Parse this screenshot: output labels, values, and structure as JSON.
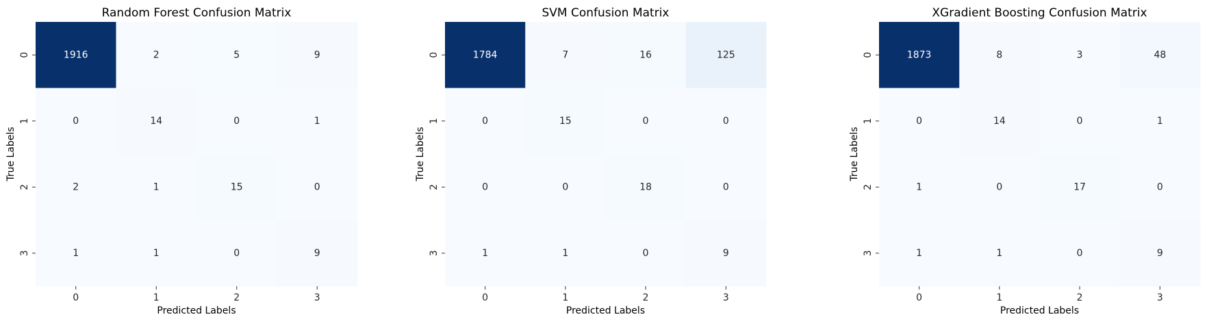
{
  "chart_data": [
    {
      "type": "heatmap",
      "title": "Random Forest Confusion Matrix",
      "xlabel": "Predicted Labels",
      "ylabel": "True Labels",
      "x_categories": [
        "0",
        "1",
        "2",
        "3"
      ],
      "y_categories": [
        "0",
        "1",
        "2",
        "3"
      ],
      "values": [
        [
          1916,
          2,
          5,
          9
        ],
        [
          0,
          14,
          0,
          1
        ],
        [
          2,
          1,
          15,
          0
        ],
        [
          1,
          1,
          0,
          9
        ]
      ],
      "colormap": "Blues",
      "colorbar": false
    },
    {
      "type": "heatmap",
      "title": "SVM Confusion Matrix",
      "xlabel": "Predicted Labels",
      "ylabel": "True Labels",
      "x_categories": [
        "0",
        "1",
        "2",
        "3"
      ],
      "y_categories": [
        "0",
        "1",
        "2",
        "3"
      ],
      "values": [
        [
          1784,
          7,
          16,
          125
        ],
        [
          0,
          15,
          0,
          0
        ],
        [
          0,
          0,
          18,
          0
        ],
        [
          1,
          1,
          0,
          9
        ]
      ],
      "colormap": "Blues",
      "colorbar": false
    },
    {
      "type": "heatmap",
      "title": "XGradient Boosting Confusion Matrix",
      "xlabel": "Predicted Labels",
      "ylabel": "True Labels",
      "x_categories": [
        "0",
        "1",
        "2",
        "3"
      ],
      "y_categories": [
        "0",
        "1",
        "2",
        "3"
      ],
      "values": [
        [
          1873,
          8,
          3,
          48
        ],
        [
          0,
          14,
          0,
          1
        ],
        [
          1,
          0,
          17,
          0
        ],
        [
          1,
          1,
          0,
          9
        ]
      ],
      "colormap": "Blues",
      "colorbar": false
    }
  ]
}
